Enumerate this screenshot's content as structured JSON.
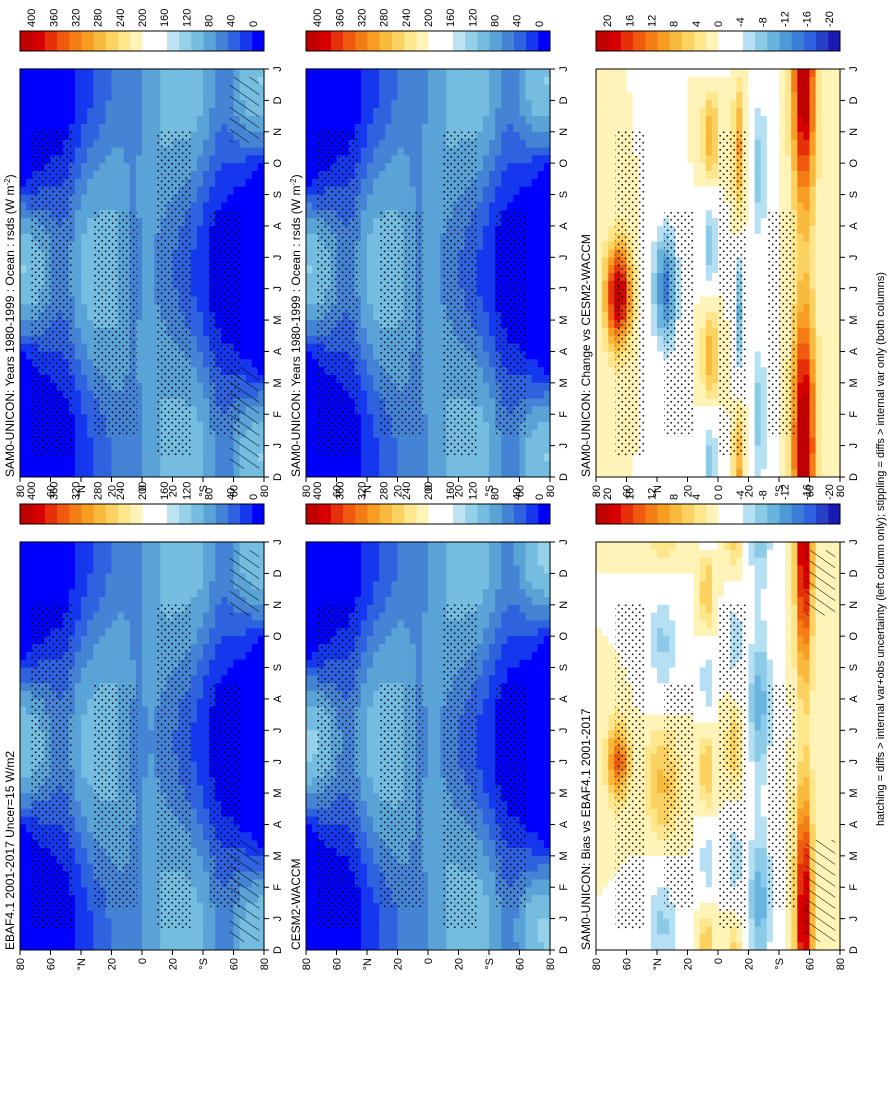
{
  "footer_note": "hatching = diffs > internal var+obs uncertainty (left column only); stippling = diffs > internal var only (both columns)",
  "colors": {
    "abs": [
      "#0000ff",
      "#1538ee",
      "#2f62de",
      "#4584d4",
      "#5aa3d6",
      "#74bde0",
      "#95d2ea",
      "#bde3f2",
      "#ffffff",
      "#ffffff",
      "#fff3b8",
      "#fde68b",
      "#fbd160",
      "#f9b93c",
      "#f79d24",
      "#f47d16",
      "#ef5a0e",
      "#e53009",
      "#d60000",
      "#c00000"
    ],
    "diff": [
      "#1a1ab4",
      "#2640c8",
      "#2f62de",
      "#3a7ed6",
      "#4d9ad6",
      "#68b4df",
      "#8ccbe8",
      "#b5dff2",
      "#ffffff",
      "#ffffff",
      "#fff3b8",
      "#fde68b",
      "#fbd160",
      "#f9b93c",
      "#f79d24",
      "#f47d16",
      "#ef5a0e",
      "#e53009",
      "#d60000",
      "#c00000"
    ]
  },
  "chart_data": [
    {
      "id": "p1",
      "type": "heatmap",
      "title": "SAM0-UNICON: Years 1980-1999 : Ocean : rsds (W m",
      "title_sup": "-2",
      "title_close": ")",
      "x_ticks": [
        "D",
        "J",
        "F",
        "M",
        "A",
        "M",
        "J",
        "J",
        "A",
        "S",
        "O",
        "N",
        "D",
        "J"
      ],
      "y_ticks": [
        "80",
        "60",
        "°N",
        "20",
        "0",
        "20",
        "°S",
        "60",
        "80"
      ],
      "colorbar": {
        "labels": [
          "400",
          "360",
          "320",
          "280",
          "240",
          "200",
          "160",
          "120",
          "80",
          "40",
          "0"
        ],
        "range": [
          0,
          440
        ],
        "scale": "abs"
      },
      "field": "abs",
      "seasonal_amp": 1.0,
      "nh_shift": 0.0,
      "stipple": "abs",
      "hatch": true
    },
    {
      "id": "p2",
      "type": "heatmap",
      "title": "SAM0-UNICON: Years 1980-1999 : Ocean : rsds (W m",
      "title_sup": "-2",
      "title_close": ")",
      "x_ticks": [
        "D",
        "J",
        "F",
        "M",
        "A",
        "M",
        "J",
        "J",
        "A",
        "S",
        "O",
        "N",
        "D",
        "J"
      ],
      "y_ticks": [
        "80",
        "60",
        "°N",
        "20",
        "0",
        "20",
        "°S",
        "60",
        "80"
      ],
      "colorbar": {
        "labels": [
          "400",
          "360",
          "320",
          "280",
          "240",
          "200",
          "160",
          "120",
          "80",
          "40",
          "0"
        ],
        "range": [
          0,
          440
        ],
        "scale": "abs"
      },
      "field": "abs",
      "seasonal_amp": 1.0,
      "nh_shift": 0.02,
      "stipple": "abs",
      "hatch": false
    },
    {
      "id": "p3",
      "type": "heatmap",
      "title": "EBAF4.1 2001-2017 Uncer=15 W/m2",
      "x_ticks": [
        "D",
        "J",
        "F",
        "M",
        "A",
        "M",
        "J",
        "J",
        "A",
        "S",
        "O",
        "N",
        "D",
        "J"
      ],
      "y_ticks": [
        "80",
        "60",
        "°N",
        "20",
        "0",
        "20",
        "°S",
        "60",
        "80"
      ],
      "colorbar": {
        "labels": [
          "400",
          "360",
          "320",
          "280",
          "240",
          "200",
          "160",
          "120",
          "80",
          "40",
          "0"
        ],
        "range": [
          0,
          440
        ],
        "scale": "abs"
      },
      "field": "abs",
      "seasonal_amp": 0.97,
      "nh_shift": -0.02,
      "stipple": "abs",
      "hatch": true
    },
    {
      "id": "p4",
      "type": "heatmap",
      "title": "CESM2-WACCM",
      "x_ticks": [
        "D",
        "J",
        "F",
        "M",
        "A",
        "M",
        "J",
        "J",
        "A",
        "S",
        "O",
        "N",
        "D",
        "J"
      ],
      "y_ticks": [
        "80",
        "60",
        "°N",
        "20",
        "0",
        "20",
        "°S",
        "60",
        "80"
      ],
      "colorbar": {
        "labels": [
          "400",
          "360",
          "320",
          "280",
          "240",
          "200",
          "160",
          "120",
          "80",
          "40",
          "0"
        ],
        "range": [
          0,
          440
        ],
        "scale": "abs"
      },
      "field": "abs",
      "seasonal_amp": 1.03,
      "nh_shift": 0.01,
      "stipple": "abs",
      "hatch": false
    },
    {
      "id": "p5",
      "type": "heatmap",
      "title": "SAM0-UNICON: Bias vs EBAF4.1 2001-2017",
      "x_ticks": [
        "D",
        "J",
        "F",
        "M",
        "A",
        "M",
        "J",
        "J",
        "A",
        "S",
        "O",
        "N",
        "D",
        "J"
      ],
      "y_ticks": [
        "80",
        "60",
        "°N",
        "20",
        "0",
        "20",
        "°S",
        "60",
        "80"
      ],
      "colorbar": {
        "labels": [
          "20",
          "16",
          "12",
          "8",
          "4",
          "0",
          "-4",
          "-8",
          "-12",
          "-16",
          "-20"
        ],
        "range": [
          -22,
          22
        ],
        "scale": "diff"
      },
      "field": "bias",
      "stipple": "diff",
      "hatch": true
    },
    {
      "id": "p6",
      "type": "heatmap",
      "title": "SAM0-UNICON: Change vs CESM2-WACCM",
      "x_ticks": [
        "D",
        "J",
        "F",
        "M",
        "A",
        "M",
        "J",
        "J",
        "A",
        "S",
        "O",
        "N",
        "D",
        "J"
      ],
      "y_ticks": [
        "80",
        "60",
        "°N",
        "20",
        "0",
        "20",
        "°S",
        "60",
        "80"
      ],
      "colorbar": {
        "labels": [
          "20",
          "16",
          "12",
          "8",
          "4",
          "0",
          "-4",
          "-8",
          "-12",
          "-16",
          "-20"
        ],
        "range": [
          -22,
          22
        ],
        "scale": "diff"
      },
      "field": "change",
      "stipple": "diff",
      "hatch": false
    }
  ]
}
